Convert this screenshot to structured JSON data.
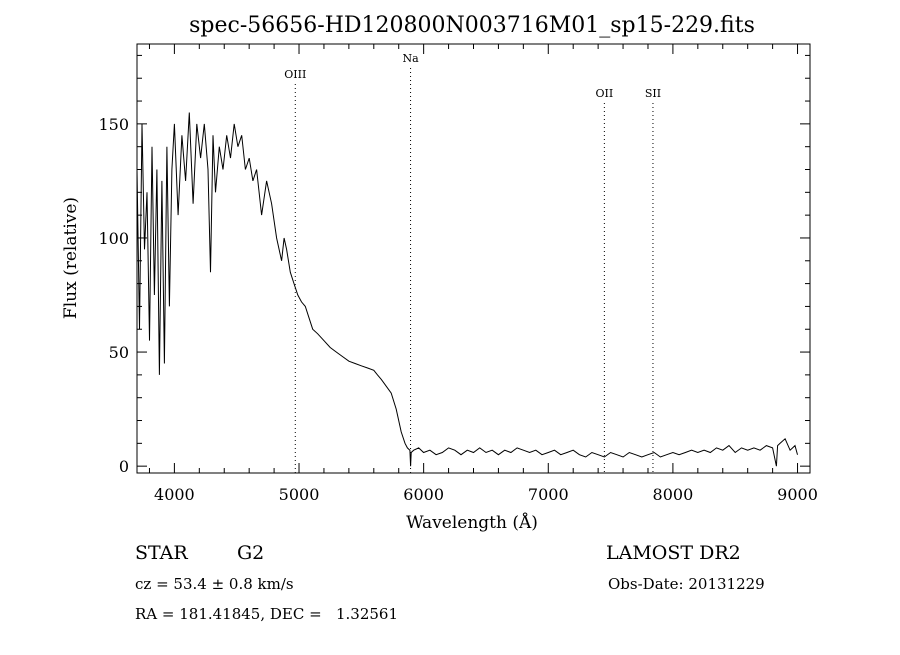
{
  "chart_data": {
    "type": "line",
    "title": "spec-56656-HD120800N003716M01_sp15-229.fits",
    "xlabel": "Wavelength (Å)",
    "ylabel": "Flux (relative)",
    "xlim": [
      3700,
      9100
    ],
    "ylim": [
      -3,
      185
    ],
    "x_ticks": [
      4000,
      5000,
      6000,
      7000,
      8000,
      9000
    ],
    "y_ticks": [
      0,
      50,
      100,
      150
    ],
    "grid": false,
    "series": [
      {
        "x": [
          3700,
          3720,
          3740,
          3760,
          3780,
          3800,
          3820,
          3840,
          3860,
          3880,
          3900,
          3920,
          3940,
          3960,
          3980,
          4000,
          4030,
          4060,
          4090,
          4120,
          4150,
          4180,
          4210,
          4240,
          4270,
          4290,
          4310,
          4330,
          4360,
          4390,
          4420,
          4450,
          4480,
          4510,
          4540,
          4570,
          4600,
          4630,
          4660,
          4700,
          4740,
          4780,
          4820,
          4860,
          4880,
          4900,
          4930,
          4960,
          4990,
          5020,
          5050,
          5080,
          5110,
          5150,
          5200,
          5250,
          5300,
          5350,
          5400,
          5450,
          5500,
          5550,
          5600,
          5630,
          5660,
          5700,
          5740,
          5780,
          5820,
          5850,
          5870,
          5890,
          5895,
          5900,
          5920,
          5960,
          6000,
          6050,
          6100,
          6150,
          6200,
          6250,
          6300,
          6350,
          6400,
          6450,
          6500,
          6550,
          6600,
          6650,
          6700,
          6750,
          6800,
          6850,
          6900,
          6950,
          7000,
          7050,
          7100,
          7150,
          7200,
          7250,
          7300,
          7350,
          7400,
          7450,
          7500,
          7550,
          7600,
          7650,
          7700,
          7750,
          7800,
          7850,
          7900,
          7950,
          8000,
          8050,
          8100,
          8150,
          8200,
          8250,
          8300,
          8350,
          8400,
          8450,
          8500,
          8550,
          8600,
          8650,
          8700,
          8750,
          8800,
          8830,
          8840,
          8860,
          8900,
          8940,
          8960,
          8980,
          9000
        ],
        "y": [
          130,
          60,
          150,
          95,
          120,
          55,
          140,
          75,
          130,
          40,
          125,
          45,
          140,
          70,
          130,
          150,
          110,
          145,
          125,
          155,
          115,
          150,
          135,
          150,
          130,
          85,
          145,
          120,
          140,
          130,
          145,
          135,
          150,
          140,
          145,
          130,
          135,
          125,
          130,
          110,
          125,
          115,
          100,
          90,
          100,
          95,
          85,
          80,
          75,
          72,
          70,
          65,
          60,
          58,
          55,
          52,
          50,
          48,
          46,
          45,
          44,
          43,
          42,
          40,
          38,
          35,
          32,
          25,
          15,
          10,
          8,
          7,
          0,
          6,
          7,
          8,
          6,
          7,
          5,
          6,
          8,
          7,
          5,
          7,
          6,
          8,
          6,
          7,
          5,
          7,
          6,
          8,
          7,
          6,
          7,
          5,
          6,
          7,
          5,
          6,
          7,
          5,
          4,
          6,
          5,
          4,
          6,
          5,
          4,
          6,
          5,
          4,
          5,
          6,
          4,
          5,
          6,
          5,
          6,
          7,
          6,
          7,
          6,
          8,
          7,
          9,
          6,
          8,
          7,
          8,
          7,
          9,
          8,
          0,
          9,
          10,
          12,
          7,
          8,
          9,
          5
        ]
      }
    ],
    "reference_lines": [
      {
        "label": "OIII",
        "x": 4970
      },
      {
        "label": "Na",
        "x": 5895
      },
      {
        "label": "OII",
        "x": 7450
      },
      {
        "label": "SII",
        "x": 7840
      }
    ]
  },
  "footer": {
    "object_type": "STAR",
    "subclass": "G2",
    "survey": "LAMOST DR2",
    "velocity": "cz = 53.4 ± 0.8 km/s",
    "obs_date": "Obs-Date: 20131229",
    "coords": "RA = 181.41845, DEC =   1.32561"
  }
}
